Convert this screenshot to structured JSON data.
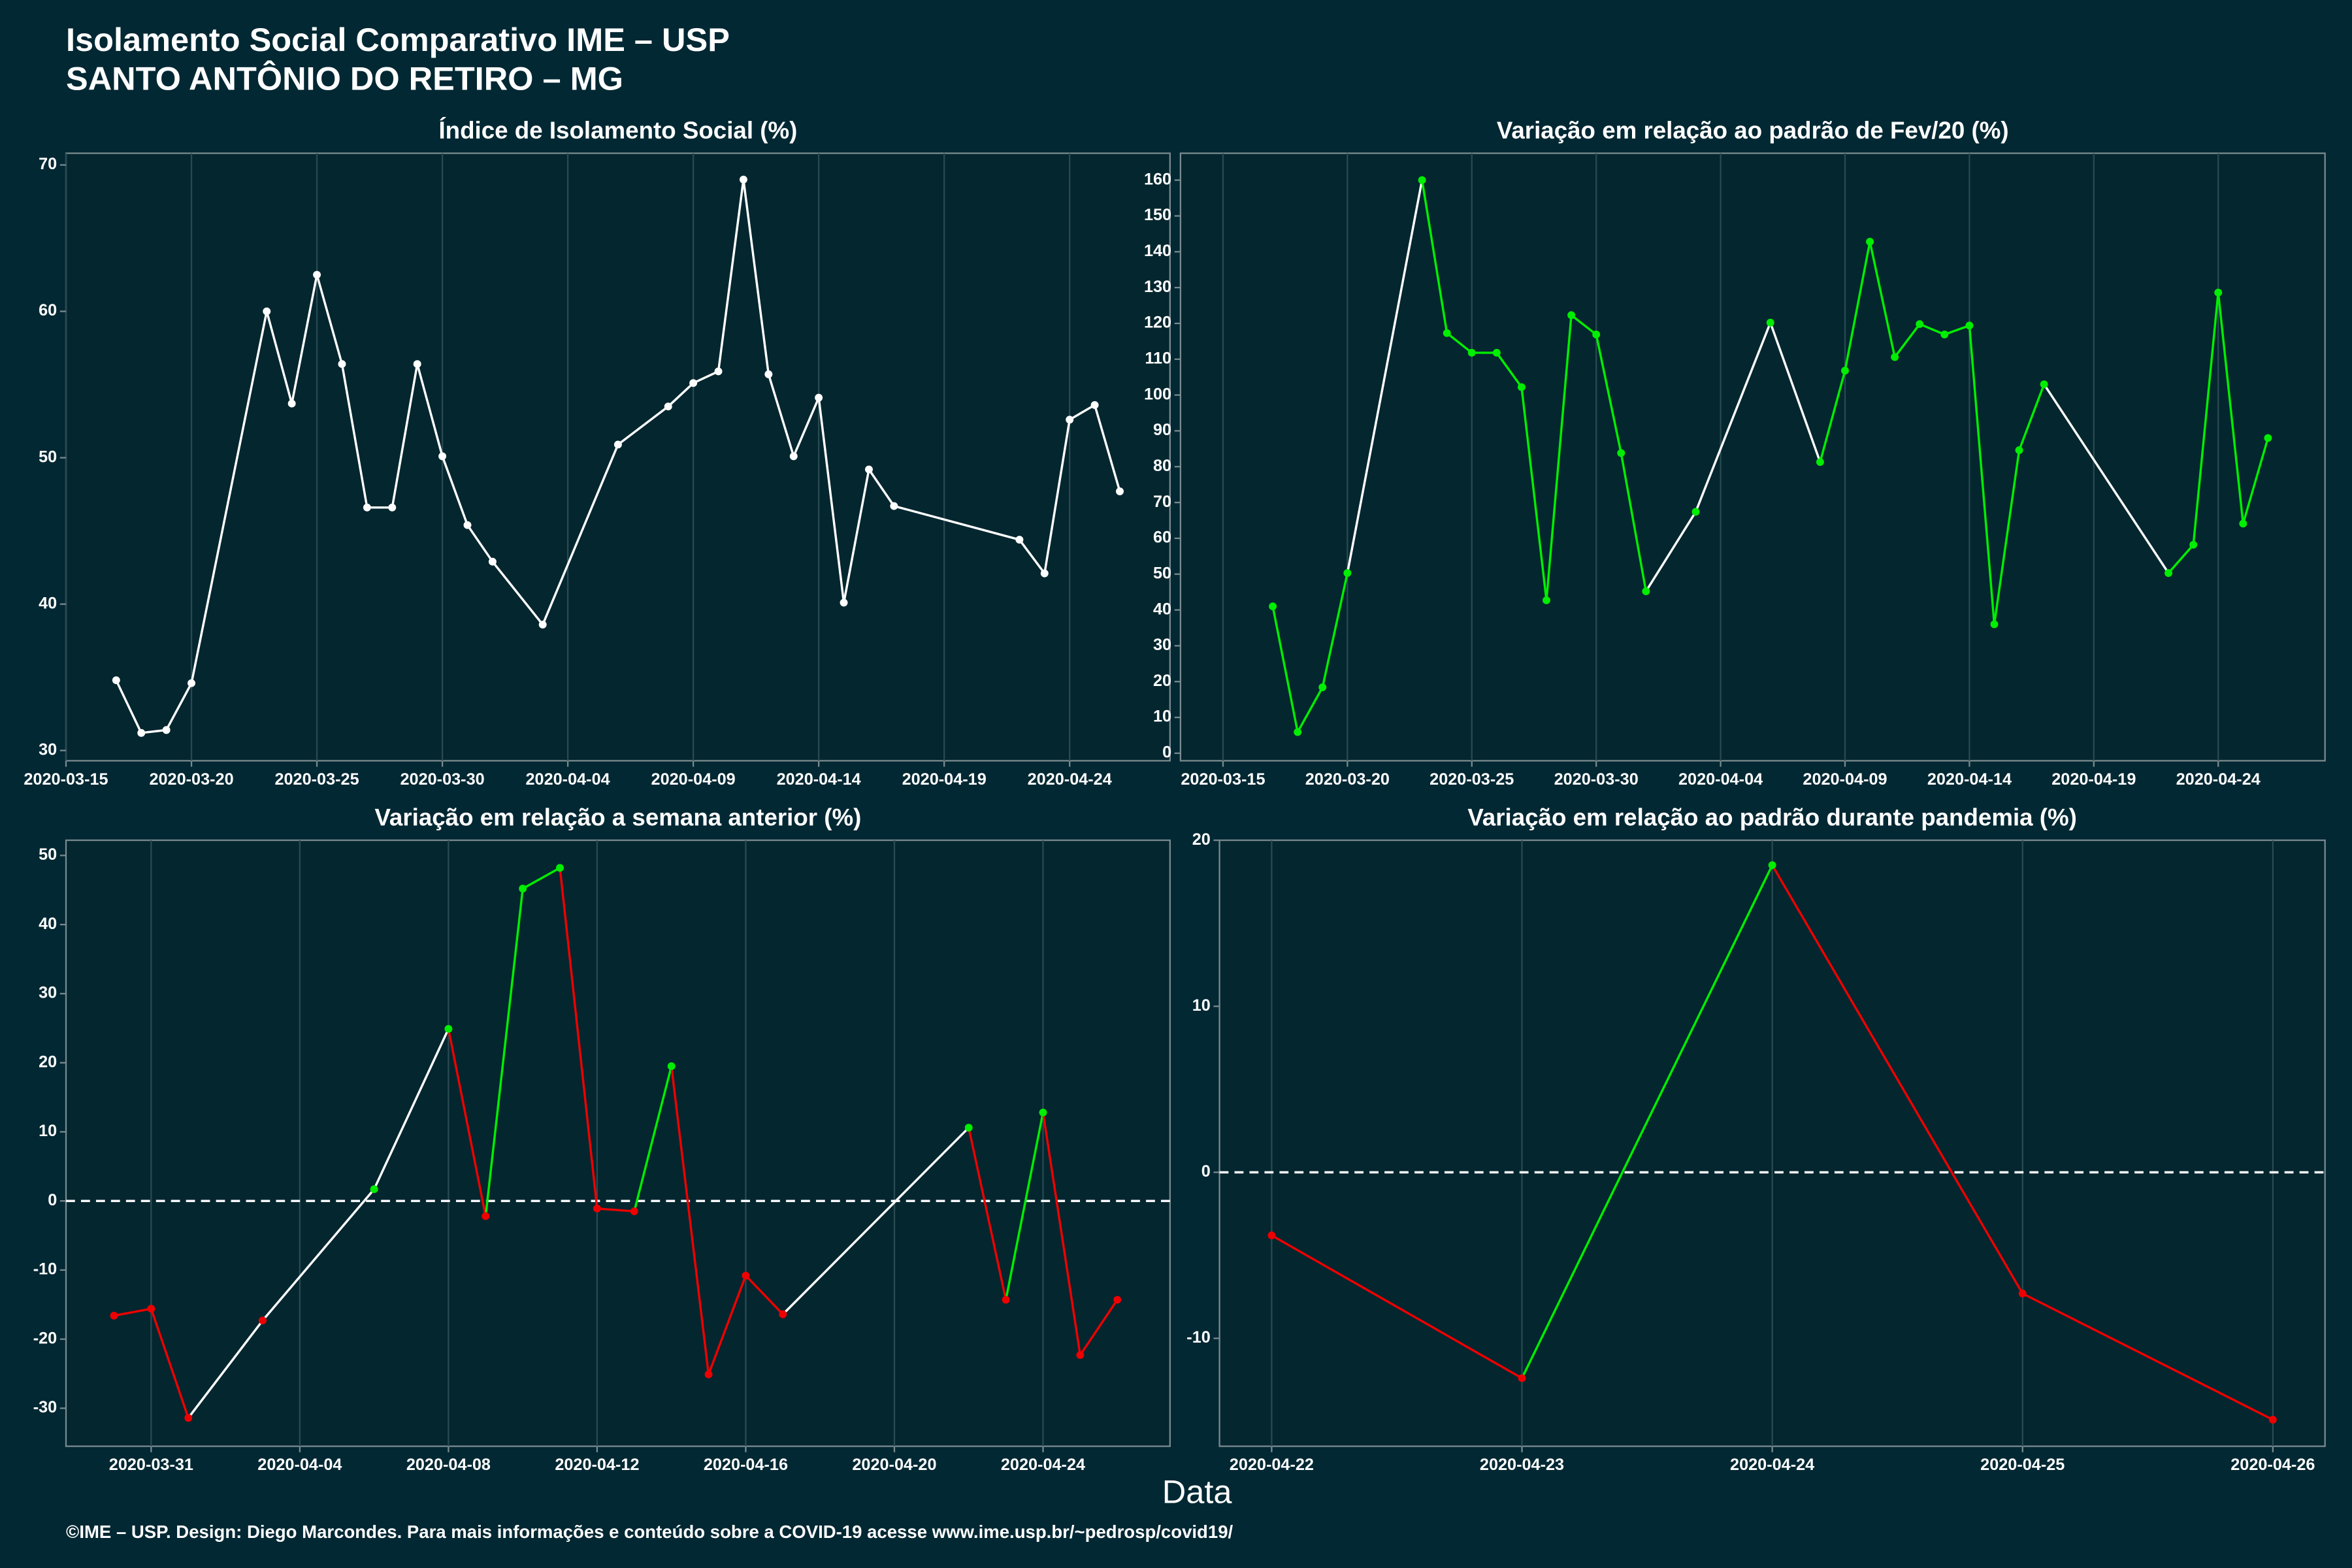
{
  "header": {
    "title": "Isolamento Social Comparativo IME – USP",
    "subtitle": "SANTO ANTÔNIO DO RETIRO – MG"
  },
  "x_label": "Data",
  "footer": "©IME – USP. Design: Diego Marcondes. Para mais informações e conteúdo sobre a COVID-19 acesse www.ime.usp.br/~pedrosp/covid19/",
  "chart_data": [
    {
      "type": "line",
      "title": "Índice de Isolamento Social (%)",
      "color": "#ffffff",
      "x": [
        "2020-03-17",
        "2020-03-18",
        "2020-03-19",
        "2020-03-20",
        "2020-03-23",
        "2020-03-24",
        "2020-03-25",
        "2020-03-26",
        "2020-03-27",
        "2020-03-28",
        "2020-03-29",
        "2020-03-30",
        "2020-03-31",
        "2020-04-01",
        "2020-04-03",
        "2020-04-06",
        "2020-04-08",
        "2020-04-09",
        "2020-04-10",
        "2020-04-11",
        "2020-04-12",
        "2020-04-13",
        "2020-04-14",
        "2020-04-15",
        "2020-04-16",
        "2020-04-17",
        "2020-04-22",
        "2020-04-23",
        "2020-04-24",
        "2020-04-25",
        "2020-04-26"
      ],
      "values": [
        34.8,
        31.2,
        31.4,
        34.6,
        60.0,
        53.7,
        62.5,
        56.4,
        46.6,
        46.6,
        56.4,
        50.1,
        45.4,
        42.9,
        38.6,
        50.9,
        53.5,
        55.1,
        55.9,
        69.0,
        55.7,
        50.1,
        54.1,
        40.1,
        49.2,
        46.7,
        44.4,
        42.1,
        52.6,
        53.6,
        47.7
      ],
      "xlim": [
        "2020-03-15",
        "2020-04-28"
      ],
      "xticks": [
        "2020-03-15",
        "2020-03-20",
        "2020-03-25",
        "2020-03-30",
        "2020-04-04",
        "2020-04-09",
        "2020-04-14",
        "2020-04-19",
        "2020-04-24"
      ],
      "ylim": [
        29.3,
        70.8
      ],
      "yticks": [
        30,
        40,
        50,
        60,
        70
      ],
      "grid": true
    },
    {
      "type": "line",
      "title": "Variação em relação ao padrão de Fev/20 (%)",
      "color": "#ffffff",
      "positive_color": "#00ee00",
      "negative_color": "#ee0000",
      "x": [
        "2020-03-17",
        "2020-03-18",
        "2020-03-19",
        "2020-03-20",
        "2020-03-23",
        "2020-03-24",
        "2020-03-25",
        "2020-03-26",
        "2020-03-27",
        "2020-03-28",
        "2020-03-29",
        "2020-03-30",
        "2020-03-31",
        "2020-04-01",
        "2020-04-03",
        "2020-04-06",
        "2020-04-08",
        "2020-04-09",
        "2020-04-10",
        "2020-04-11",
        "2020-04-12",
        "2020-04-13",
        "2020-04-14",
        "2020-04-15",
        "2020-04-16",
        "2020-04-17",
        "2020-04-22",
        "2020-04-23",
        "2020-04-24",
        "2020-04-25",
        "2020-04-26"
      ],
      "values": [
        41,
        5.9,
        18.4,
        50.3,
        160,
        117.3,
        111.8,
        111.8,
        102.2,
        42.7,
        122.3,
        116.9,
        83.8,
        45.2,
        67.4,
        120.2,
        81.3,
        106.8,
        142.8,
        110.6,
        119.8,
        116.9,
        119.4,
        36.0,
        84.6,
        103,
        50.3,
        58.2,
        128.6,
        64.1,
        88.0
      ],
      "xlim": [
        "2020-03-13T07:00Z",
        "2020-04-28T07:00Z"
      ],
      "xticks": [
        "2020-03-15",
        "2020-03-20",
        "2020-03-25",
        "2020-03-30",
        "2020-04-04",
        "2020-04-09",
        "2020-04-14",
        "2020-04-19",
        "2020-04-24"
      ],
      "ylim": [
        -2.1,
        167.5
      ],
      "yticks": [
        0,
        10,
        20,
        30,
        40,
        50,
        60,
        70,
        80,
        90,
        100,
        110,
        120,
        130,
        140,
        150,
        160
      ],
      "grid": true
    },
    {
      "type": "line",
      "title": "Variação em relação a semana anterior (%)",
      "color": "#ffffff",
      "positive_color": "#00ee00",
      "negative_color": "#ee0000",
      "hline": 0,
      "x": [
        "2020-03-30",
        "2020-03-31",
        "2020-04-01",
        "2020-04-03",
        "2020-04-06",
        "2020-04-08",
        "2020-04-09",
        "2020-04-10",
        "2020-04-11",
        "2020-04-12",
        "2020-04-13",
        "2020-04-14",
        "2020-04-15",
        "2020-04-16",
        "2020-04-17",
        "2020-04-22",
        "2020-04-23",
        "2020-04-24",
        "2020-04-25",
        "2020-04-26"
      ],
      "values": [
        -16.6,
        -15.6,
        -31.4,
        -17.3,
        1.7,
        24.9,
        -2.2,
        45.2,
        48.2,
        -1.1,
        -1.5,
        19.5,
        -25.1,
        -10.8,
        -16.4,
        10.6,
        -14.3,
        12.8,
        -22.3,
        -14.3
      ],
      "xlim": [
        "2020-03-28T17:00Z",
        "2020-04-27T10:00Z"
      ],
      "xticks": [
        "2020-03-31",
        "2020-04-04",
        "2020-04-08",
        "2020-04-12",
        "2020-04-16",
        "2020-04-20",
        "2020-04-24"
      ],
      "ylim": [
        -35.5,
        52.2
      ],
      "yticks": [
        -30,
        -20,
        -10,
        0,
        10,
        20,
        30,
        40,
        50
      ],
      "grid": true
    },
    {
      "type": "line",
      "title": "Variação em relação ao padrão durante pandemia (%)",
      "color": "#ffffff",
      "positive_color": "#00ee00",
      "negative_color": "#ee0000",
      "hline": 0,
      "x": [
        "2020-04-22",
        "2020-04-23",
        "2020-04-24",
        "2020-04-25",
        "2020-04-26"
      ],
      "values": [
        -3.8,
        -12.4,
        18.5,
        -7.3,
        -14.9
      ],
      "xlim": [
        "2020-04-21T19:00Z",
        "2020-04-26T05:00Z"
      ],
      "xticks": [
        "2020-04-22",
        "2020-04-23",
        "2020-04-24",
        "2020-04-25",
        "2020-04-26"
      ],
      "ylim": [
        -16.5,
        20
      ],
      "yticks": [
        -10,
        0,
        10,
        20
      ],
      "grid": true
    }
  ]
}
